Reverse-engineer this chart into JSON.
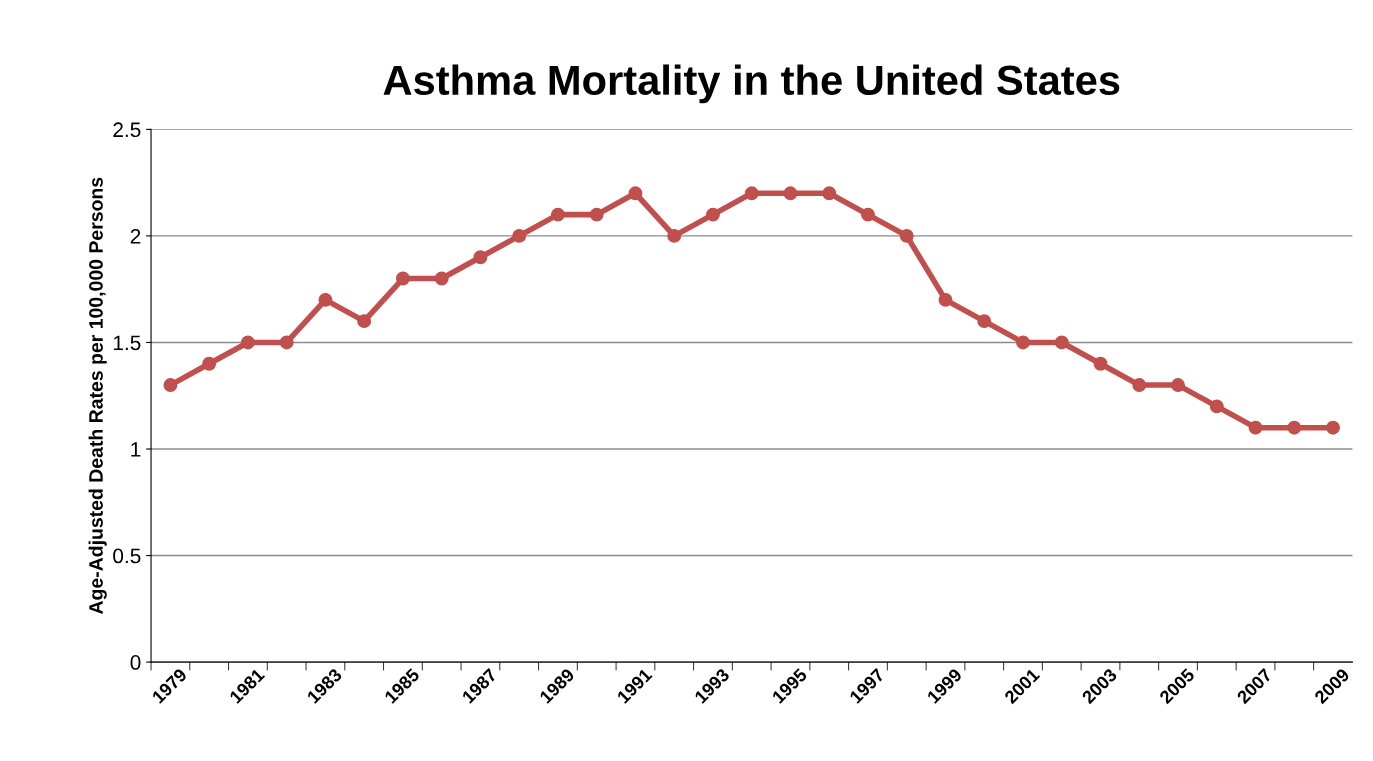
{
  "chart_data": {
    "type": "line",
    "title": "Asthma Mortality in the United States",
    "ylabel": "Age-Adjusted Death Rates per 100,000 Persons",
    "categories": [
      "1979",
      null,
      "1981",
      null,
      "1983",
      null,
      "1985",
      null,
      "1987",
      null,
      "1989",
      null,
      "1991",
      null,
      "1993",
      null,
      "1995",
      null,
      "1997",
      null,
      "1999",
      null,
      "2001",
      null,
      "2003",
      null,
      "2005",
      null,
      "2007",
      null,
      "2009"
    ],
    "series": [
      {
        "color": "#c0504d",
        "values": [
          1.3,
          1.4,
          1.5,
          1.5,
          1.7,
          1.6,
          1.8,
          1.8,
          1.9,
          2.0,
          2.1,
          2.1,
          2.2,
          2.0,
          2.1,
          2.2,
          2.2,
          2.2,
          2.1,
          2.0,
          1.7,
          1.6,
          1.5,
          1.5,
          1.4,
          1.3,
          1.3,
          1.2,
          1.1,
          1.1,
          1.1
        ]
      }
    ],
    "ylim": [
      0,
      2.5
    ],
    "yticks": [
      0,
      0.5,
      1,
      1.5,
      2,
      2.5
    ],
    "grid": "y",
    "marker": "circle",
    "line_style": "solid",
    "legend": false
  }
}
